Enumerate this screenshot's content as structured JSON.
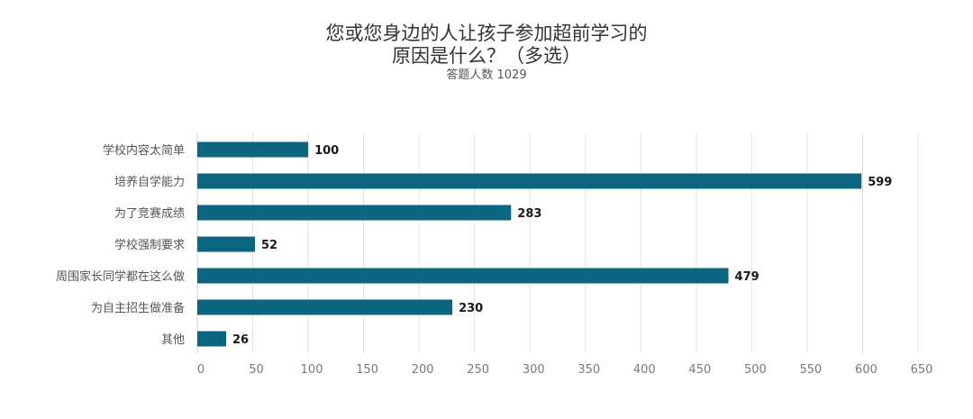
{
  "chart_data": {
    "type": "bar",
    "orientation": "horizontal",
    "title_lines": [
      "您或您身边的人让孩子参加超前学习的",
      "原因是什么？（多选）"
    ],
    "subtitle": "答题人数 1029",
    "categories": [
      "学校内容太简单",
      "培养自学能力",
      "为了竞赛成绩",
      "学校强制要求",
      "周围家长同学都在这么做",
      "为自主招生做准备",
      "其他"
    ],
    "values": [
      100,
      599,
      283,
      52,
      479,
      230,
      26
    ],
    "xlim": [
      0,
      650
    ],
    "xticks": [
      0,
      50,
      100,
      150,
      200,
      250,
      300,
      350,
      400,
      450,
      500,
      550,
      600,
      650
    ],
    "grid": true,
    "bar_color": "#0d6680"
  }
}
